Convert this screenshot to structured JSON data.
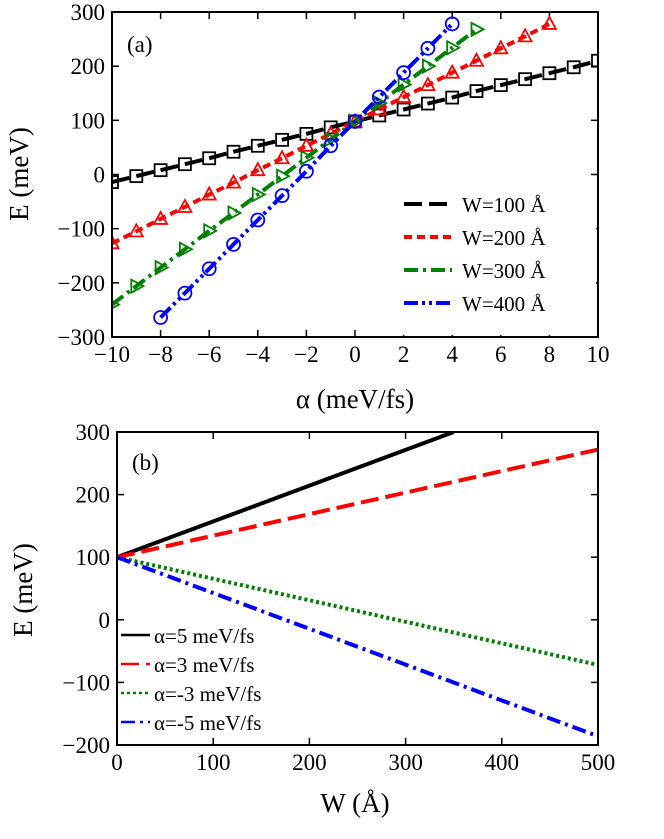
{
  "chart_data": [
    {
      "type": "line",
      "panel_label": "(a)",
      "xlabel": "α (meV/fs)",
      "ylabel": "E (meV)",
      "xlim": [
        -10,
        10
      ],
      "ylim": [
        -300,
        300
      ],
      "xticks": [
        -10,
        -8,
        -6,
        -4,
        -2,
        0,
        2,
        4,
        6,
        8,
        10
      ],
      "yticks": [
        -300,
        -200,
        -100,
        0,
        100,
        200,
        300
      ],
      "xtick_labels": [
        "−10",
        "−8",
        "−6",
        "−4",
        "−2",
        "0",
        "2",
        "4",
        "6",
        "8",
        "10"
      ],
      "ytick_labels": [
        "−300",
        "−200",
        "−100",
        "0",
        "100",
        "200",
        "300"
      ],
      "legend_position": "lower-right",
      "series": [
        {
          "name": "W=100 Å",
          "color": "#000000",
          "dash": "long-dash",
          "marker": "square",
          "x": [
            -10,
            -9,
            -8,
            -7,
            -6,
            -5,
            -4,
            -3,
            -2,
            -1,
            0,
            1,
            2,
            3,
            4,
            5,
            6,
            7,
            8,
            9,
            10
          ],
          "y": [
            -14,
            -3,
            8,
            19,
            30,
            42,
            53,
            64,
            75,
            87,
            98,
            109,
            120,
            131,
            142,
            154,
            165,
            176,
            187,
            198,
            210
          ]
        },
        {
          "name": "W=200 Å",
          "color": "#ff0000",
          "dash": "short-dash",
          "marker": "triangle-up",
          "x": [
            -10,
            -9,
            -8,
            -7,
            -6,
            -5,
            -4,
            -3,
            -2,
            -1,
            0,
            1,
            2,
            3,
            4,
            5,
            6,
            7,
            8
          ],
          "y": [
            -127,
            -105,
            -82,
            -60,
            -37,
            -15,
            8,
            30,
            53,
            75,
            98,
            120,
            143,
            165,
            188,
            210,
            233,
            255,
            278
          ]
        },
        {
          "name": "W=300 Å",
          "color": "#008000",
          "dash": "dash-dot",
          "marker": "triangle-right",
          "x": [
            -10,
            -9,
            -8,
            -7,
            -6,
            -5,
            -4,
            -3,
            -2,
            -1,
            0,
            1,
            2,
            3,
            4,
            5
          ],
          "y": [
            -240,
            -206,
            -172,
            -138,
            -104,
            -71,
            -37,
            -3,
            31,
            65,
            98,
            132,
            166,
            200,
            234,
            268
          ]
        },
        {
          "name": "W=400 Å",
          "color": "#0000ff",
          "dash": "dash-dot-dot",
          "marker": "circle",
          "x": [
            -8,
            -7,
            -6,
            -5,
            -4,
            -3,
            -2,
            -1,
            0,
            1,
            2,
            3,
            4
          ],
          "y": [
            -264,
            -219,
            -174,
            -129,
            -84,
            -39,
            6,
            53,
            98,
            143,
            188,
            233,
            278
          ]
        }
      ]
    },
    {
      "type": "line",
      "panel_label": "(b)",
      "xlabel": "W (Å)",
      "ylabel": "E (meV)",
      "xlim": [
        0,
        500
      ],
      "ylim": [
        -200,
        300
      ],
      "xticks": [
        0,
        100,
        200,
        300,
        400,
        500
      ],
      "yticks": [
        -200,
        -100,
        0,
        100,
        200,
        300
      ],
      "xtick_labels": [
        "0",
        "100",
        "200",
        "300",
        "400",
        "500"
      ],
      "ytick_labels": [
        "−200",
        "−100",
        "0",
        "100",
        "200",
        "300"
      ],
      "legend_position": "lower-left",
      "series": [
        {
          "name": "α=5 meV/fs",
          "color": "#000000",
          "dash": "solid",
          "x": [
            0,
            350
          ],
          "y": [
            100,
            300
          ]
        },
        {
          "name": "α=3 meV/fs",
          "color": "#ff0000",
          "dash": "long-dash",
          "x": [
            0,
            500
          ],
          "y": [
            100,
            272
          ]
        },
        {
          "name": "α=-3 meV/fs",
          "color": "#008000",
          "dash": "dotted",
          "x": [
            0,
            500
          ],
          "y": [
            100,
            -72
          ]
        },
        {
          "name": "α=-5 meV/fs",
          "color": "#0000ff",
          "dash": "dash-dot",
          "x": [
            0,
            500
          ],
          "y": [
            100,
            -186
          ]
        }
      ]
    }
  ]
}
